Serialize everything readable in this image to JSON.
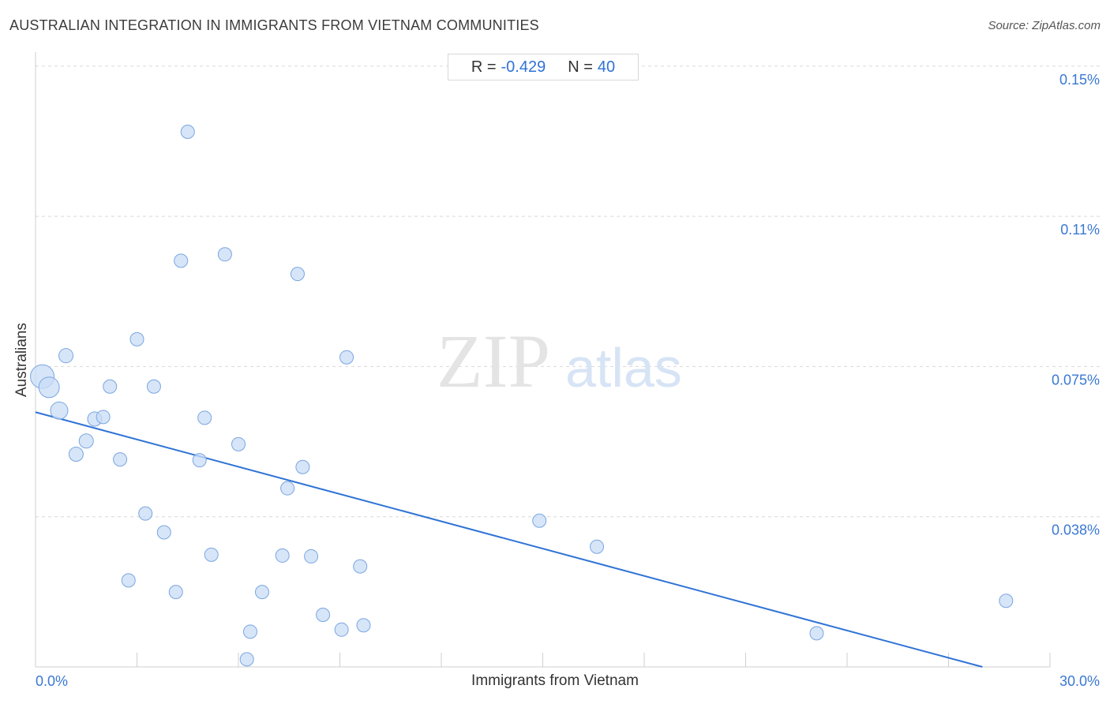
{
  "title": "AUSTRALIAN INTEGRATION IN IMMIGRANTS FROM VIETNAM COMMUNITIES",
  "source": "Source: ZipAtlas.com",
  "stats": {
    "r_label": "R =",
    "r_value": "-0.429",
    "n_label": "N =",
    "n_value": "40"
  },
  "watermark": {
    "zip": "ZIP",
    "atlas": "atlas"
  },
  "colors": {
    "point_fill": "#c9dcf5",
    "point_stroke": "#7aa6e0",
    "trend": "#2f73d6",
    "grid": "#d9d9d9",
    "tick_text": "#3a78d4"
  },
  "chart_data": {
    "type": "scatter",
    "xlabel": "Immigrants from Vietnam",
    "ylabel": "Australians",
    "xlim": [
      0,
      30
    ],
    "ylim": [
      0.0,
      0.1535
    ],
    "x_ticks": [
      0,
      3,
      6,
      9,
      12,
      15,
      18,
      21,
      24,
      27,
      30
    ],
    "x_tick_labels": [
      {
        "value": 0,
        "label": "0.0%"
      },
      {
        "value": 30,
        "label": "30.0%"
      }
    ],
    "y_ticks": [
      {
        "value": 0.0375,
        "label": "0.038%"
      },
      {
        "value": 0.075,
        "label": "0.075%"
      },
      {
        "value": 0.1125,
        "label": "0.11%"
      },
      {
        "value": 0.15,
        "label": "0.15%"
      }
    ],
    "grid": "horizontal dashed",
    "trendline": {
      "x": [
        0,
        28
      ],
      "y": [
        0.0636,
        0.0
      ]
    },
    "points": [
      {
        "x": 0.2,
        "y": 0.0725,
        "size": 30
      },
      {
        "x": 0.4,
        "y": 0.0698,
        "size": 26
      },
      {
        "x": 0.7,
        "y": 0.064,
        "size": 22
      },
      {
        "x": 0.9,
        "y": 0.0777,
        "size": 18
      },
      {
        "x": 1.2,
        "y": 0.0531,
        "size": 18
      },
      {
        "x": 1.5,
        "y": 0.0564,
        "size": 18
      },
      {
        "x": 1.75,
        "y": 0.0619,
        "size": 18
      },
      {
        "x": 2.0,
        "y": 0.0624,
        "size": 17
      },
      {
        "x": 2.2,
        "y": 0.07,
        "size": 17
      },
      {
        "x": 2.5,
        "y": 0.0518,
        "size": 17
      },
      {
        "x": 2.75,
        "y": 0.0216,
        "size": 17
      },
      {
        "x": 3.0,
        "y": 0.0818,
        "size": 17
      },
      {
        "x": 3.25,
        "y": 0.0383,
        "size": 17
      },
      {
        "x": 3.5,
        "y": 0.07,
        "size": 17
      },
      {
        "x": 3.8,
        "y": 0.0336,
        "size": 17
      },
      {
        "x": 4.15,
        "y": 0.0187,
        "size": 17
      },
      {
        "x": 4.3,
        "y": 0.1014,
        "size": 17
      },
      {
        "x": 4.5,
        "y": 0.1336,
        "size": 17
      },
      {
        "x": 4.85,
        "y": 0.0516,
        "size": 17
      },
      {
        "x": 5.0,
        "y": 0.0622,
        "size": 17
      },
      {
        "x": 5.2,
        "y": 0.028,
        "size": 17
      },
      {
        "x": 5.6,
        "y": 0.103,
        "size": 17
      },
      {
        "x": 6.0,
        "y": 0.0556,
        "size": 17
      },
      {
        "x": 6.25,
        "y": 0.0019,
        "size": 17
      },
      {
        "x": 6.35,
        "y": 0.0088,
        "size": 17
      },
      {
        "x": 6.7,
        "y": 0.0187,
        "size": 17
      },
      {
        "x": 7.3,
        "y": 0.0278,
        "size": 17
      },
      {
        "x": 7.45,
        "y": 0.0446,
        "size": 17
      },
      {
        "x": 7.75,
        "y": 0.0981,
        "size": 17
      },
      {
        "x": 7.9,
        "y": 0.0499,
        "size": 17
      },
      {
        "x": 8.15,
        "y": 0.0276,
        "size": 17
      },
      {
        "x": 8.5,
        "y": 0.013,
        "size": 17
      },
      {
        "x": 9.05,
        "y": 0.0093,
        "size": 17
      },
      {
        "x": 9.2,
        "y": 0.0773,
        "size": 17
      },
      {
        "x": 9.6,
        "y": 0.0251,
        "size": 17
      },
      {
        "x": 9.7,
        "y": 0.0104,
        "size": 17
      },
      {
        "x": 14.9,
        "y": 0.0365,
        "size": 17
      },
      {
        "x": 16.6,
        "y": 0.03,
        "size": 17
      },
      {
        "x": 23.1,
        "y": 0.0084,
        "size": 17
      },
      {
        "x": 28.7,
        "y": 0.0165,
        "size": 17
      }
    ]
  }
}
